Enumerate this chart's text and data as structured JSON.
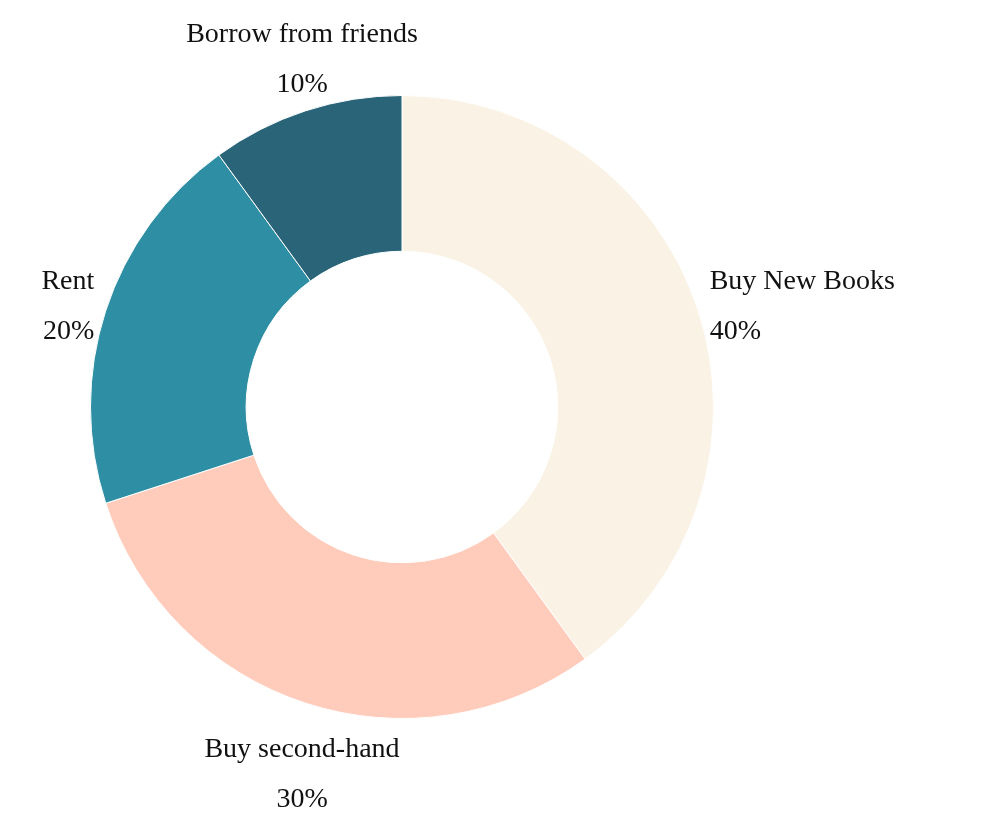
{
  "chart_data": {
    "type": "donut",
    "categories": [
      "Buy New Books",
      "Buy second-hand",
      "Rent",
      "Borrow from friends"
    ],
    "values": [
      40,
      30,
      20,
      10
    ],
    "colors": [
      "#faf2e4",
      "#ffcbbb",
      "#2e8ea4",
      "#296479"
    ],
    "value_labels": [
      "40%",
      "30%",
      "20%",
      "10%"
    ]
  }
}
